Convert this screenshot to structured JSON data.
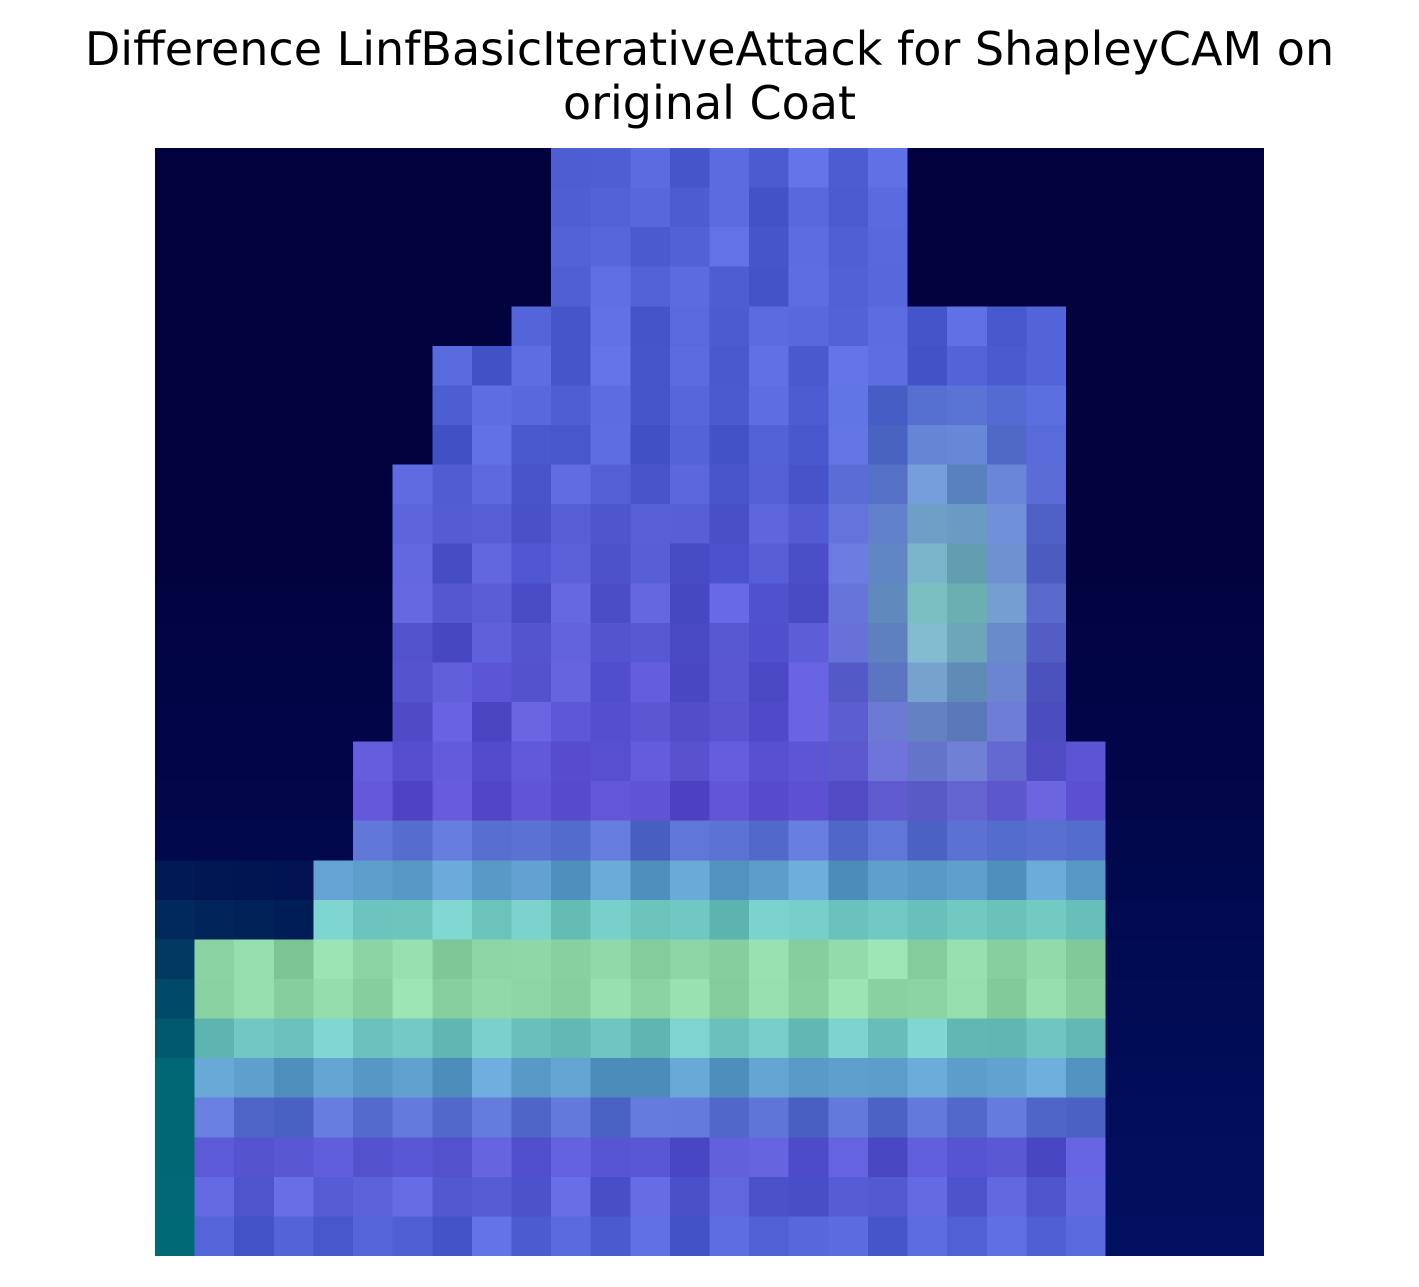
{
  "figure": {
    "title_line1": "Difference LinfBasicIterativeAttack for ShapleyCAM on",
    "title_line2": "original Coat"
  },
  "image": {
    "type": "heatmap-overlay",
    "grid_size": [
      28,
      28
    ],
    "subject": "coat silhouette",
    "colors": {
      "background": "#ffffff",
      "dark_navy": "#02023f",
      "deep_blue": "#001c78",
      "mid_blue": "#5b6ce0",
      "violet": "#6458d8",
      "cyan": "#5ad2dc",
      "aqua_green": "#8ce6c0",
      "light_green": "#b4dc8c",
      "teal": "#00787a"
    }
  }
}
